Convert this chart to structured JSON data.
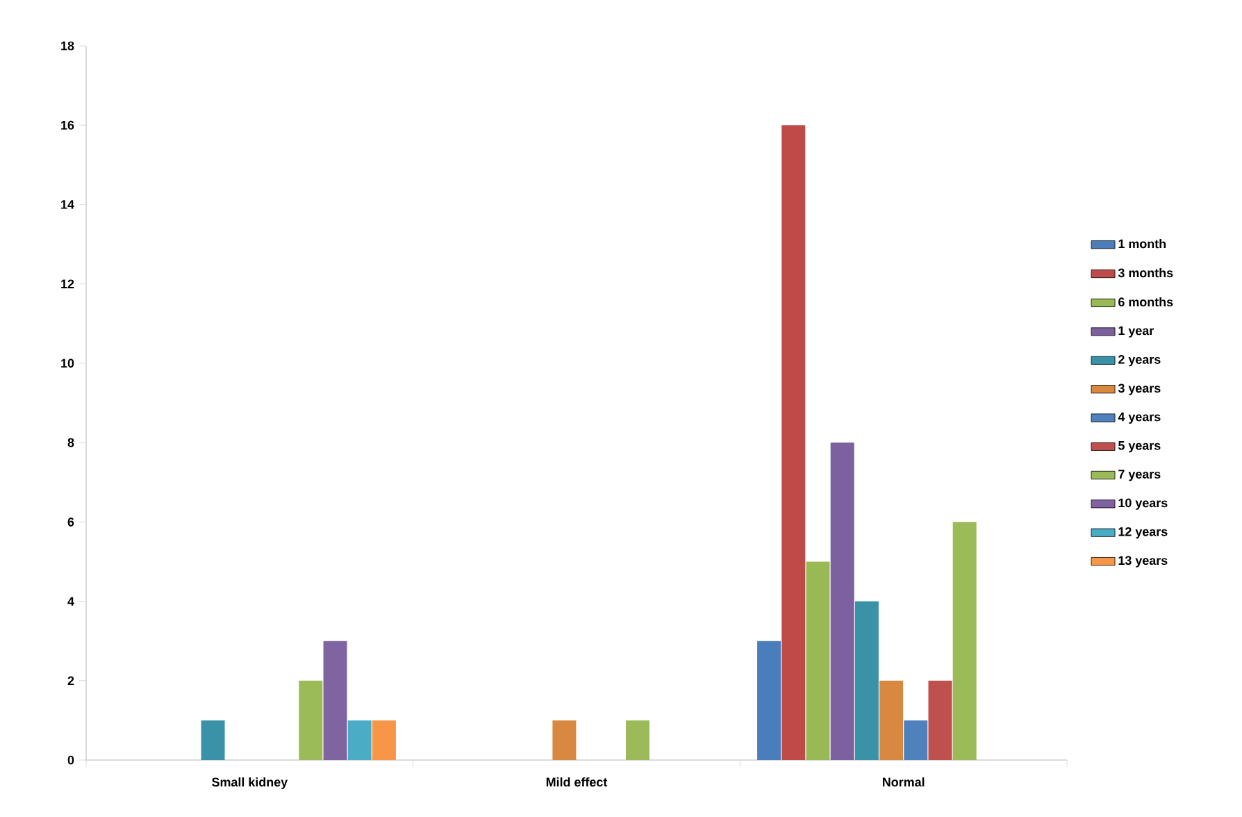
{
  "chart_data": {
    "type": "bar",
    "categories": [
      "Small kidney",
      "Mild effect",
      "Normal"
    ],
    "series": [
      {
        "name": "1 month",
        "color": "#4a7ebb",
        "values": [
          null,
          null,
          3
        ]
      },
      {
        "name": "3 months",
        "color": "#be4b48",
        "values": [
          null,
          null,
          16
        ]
      },
      {
        "name": "6 months",
        "color": "#98b954",
        "values": [
          null,
          null,
          5
        ]
      },
      {
        "name": "1 year",
        "color": "#7d60a0",
        "values": [
          null,
          null,
          8
        ]
      },
      {
        "name": "2 years",
        "color": "#3a92a8",
        "values": [
          1,
          null,
          4
        ]
      },
      {
        "name": "3 years",
        "color": "#d8883f",
        "values": [
          null,
          1,
          2
        ]
      },
      {
        "name": "4 years",
        "color": "#4f81bd",
        "values": [
          null,
          null,
          1
        ]
      },
      {
        "name": "5 years",
        "color": "#c0504d",
        "values": [
          null,
          null,
          2
        ]
      },
      {
        "name": "7 years",
        "color": "#9bbb59",
        "values": [
          2,
          1,
          6
        ]
      },
      {
        "name": "10 years",
        "color": "#8064a2",
        "values": [
          3,
          null,
          null
        ]
      },
      {
        "name": "12 years",
        "color": "#4bacc6",
        "values": [
          1,
          null,
          null
        ]
      },
      {
        "name": "13 years",
        "color": "#f79646",
        "values": [
          1,
          null,
          null
        ]
      }
    ],
    "ylim": [
      0,
      18
    ],
    "yticks": [
      0,
      2,
      4,
      6,
      8,
      10,
      12,
      14,
      16,
      18
    ],
    "grid": false,
    "legend": "right"
  }
}
